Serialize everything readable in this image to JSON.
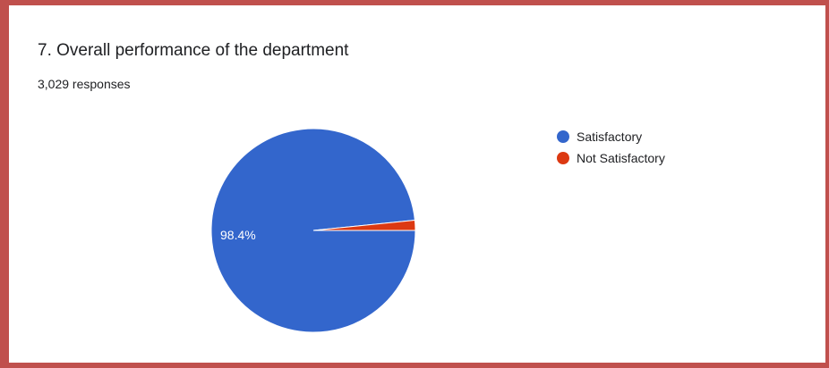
{
  "question": {
    "title": "7. Overall performance of the department",
    "responses": "3,029 responses"
  },
  "chart_data": {
    "type": "pie",
    "categories": [
      "Satisfactory",
      "Not Satisfactory"
    ],
    "values": [
      98.4,
      1.6
    ],
    "data_labels": [
      "98.4%",
      ""
    ],
    "colors": [
      "#3366cc",
      "#dc3912"
    ],
    "legend_position": "right"
  }
}
